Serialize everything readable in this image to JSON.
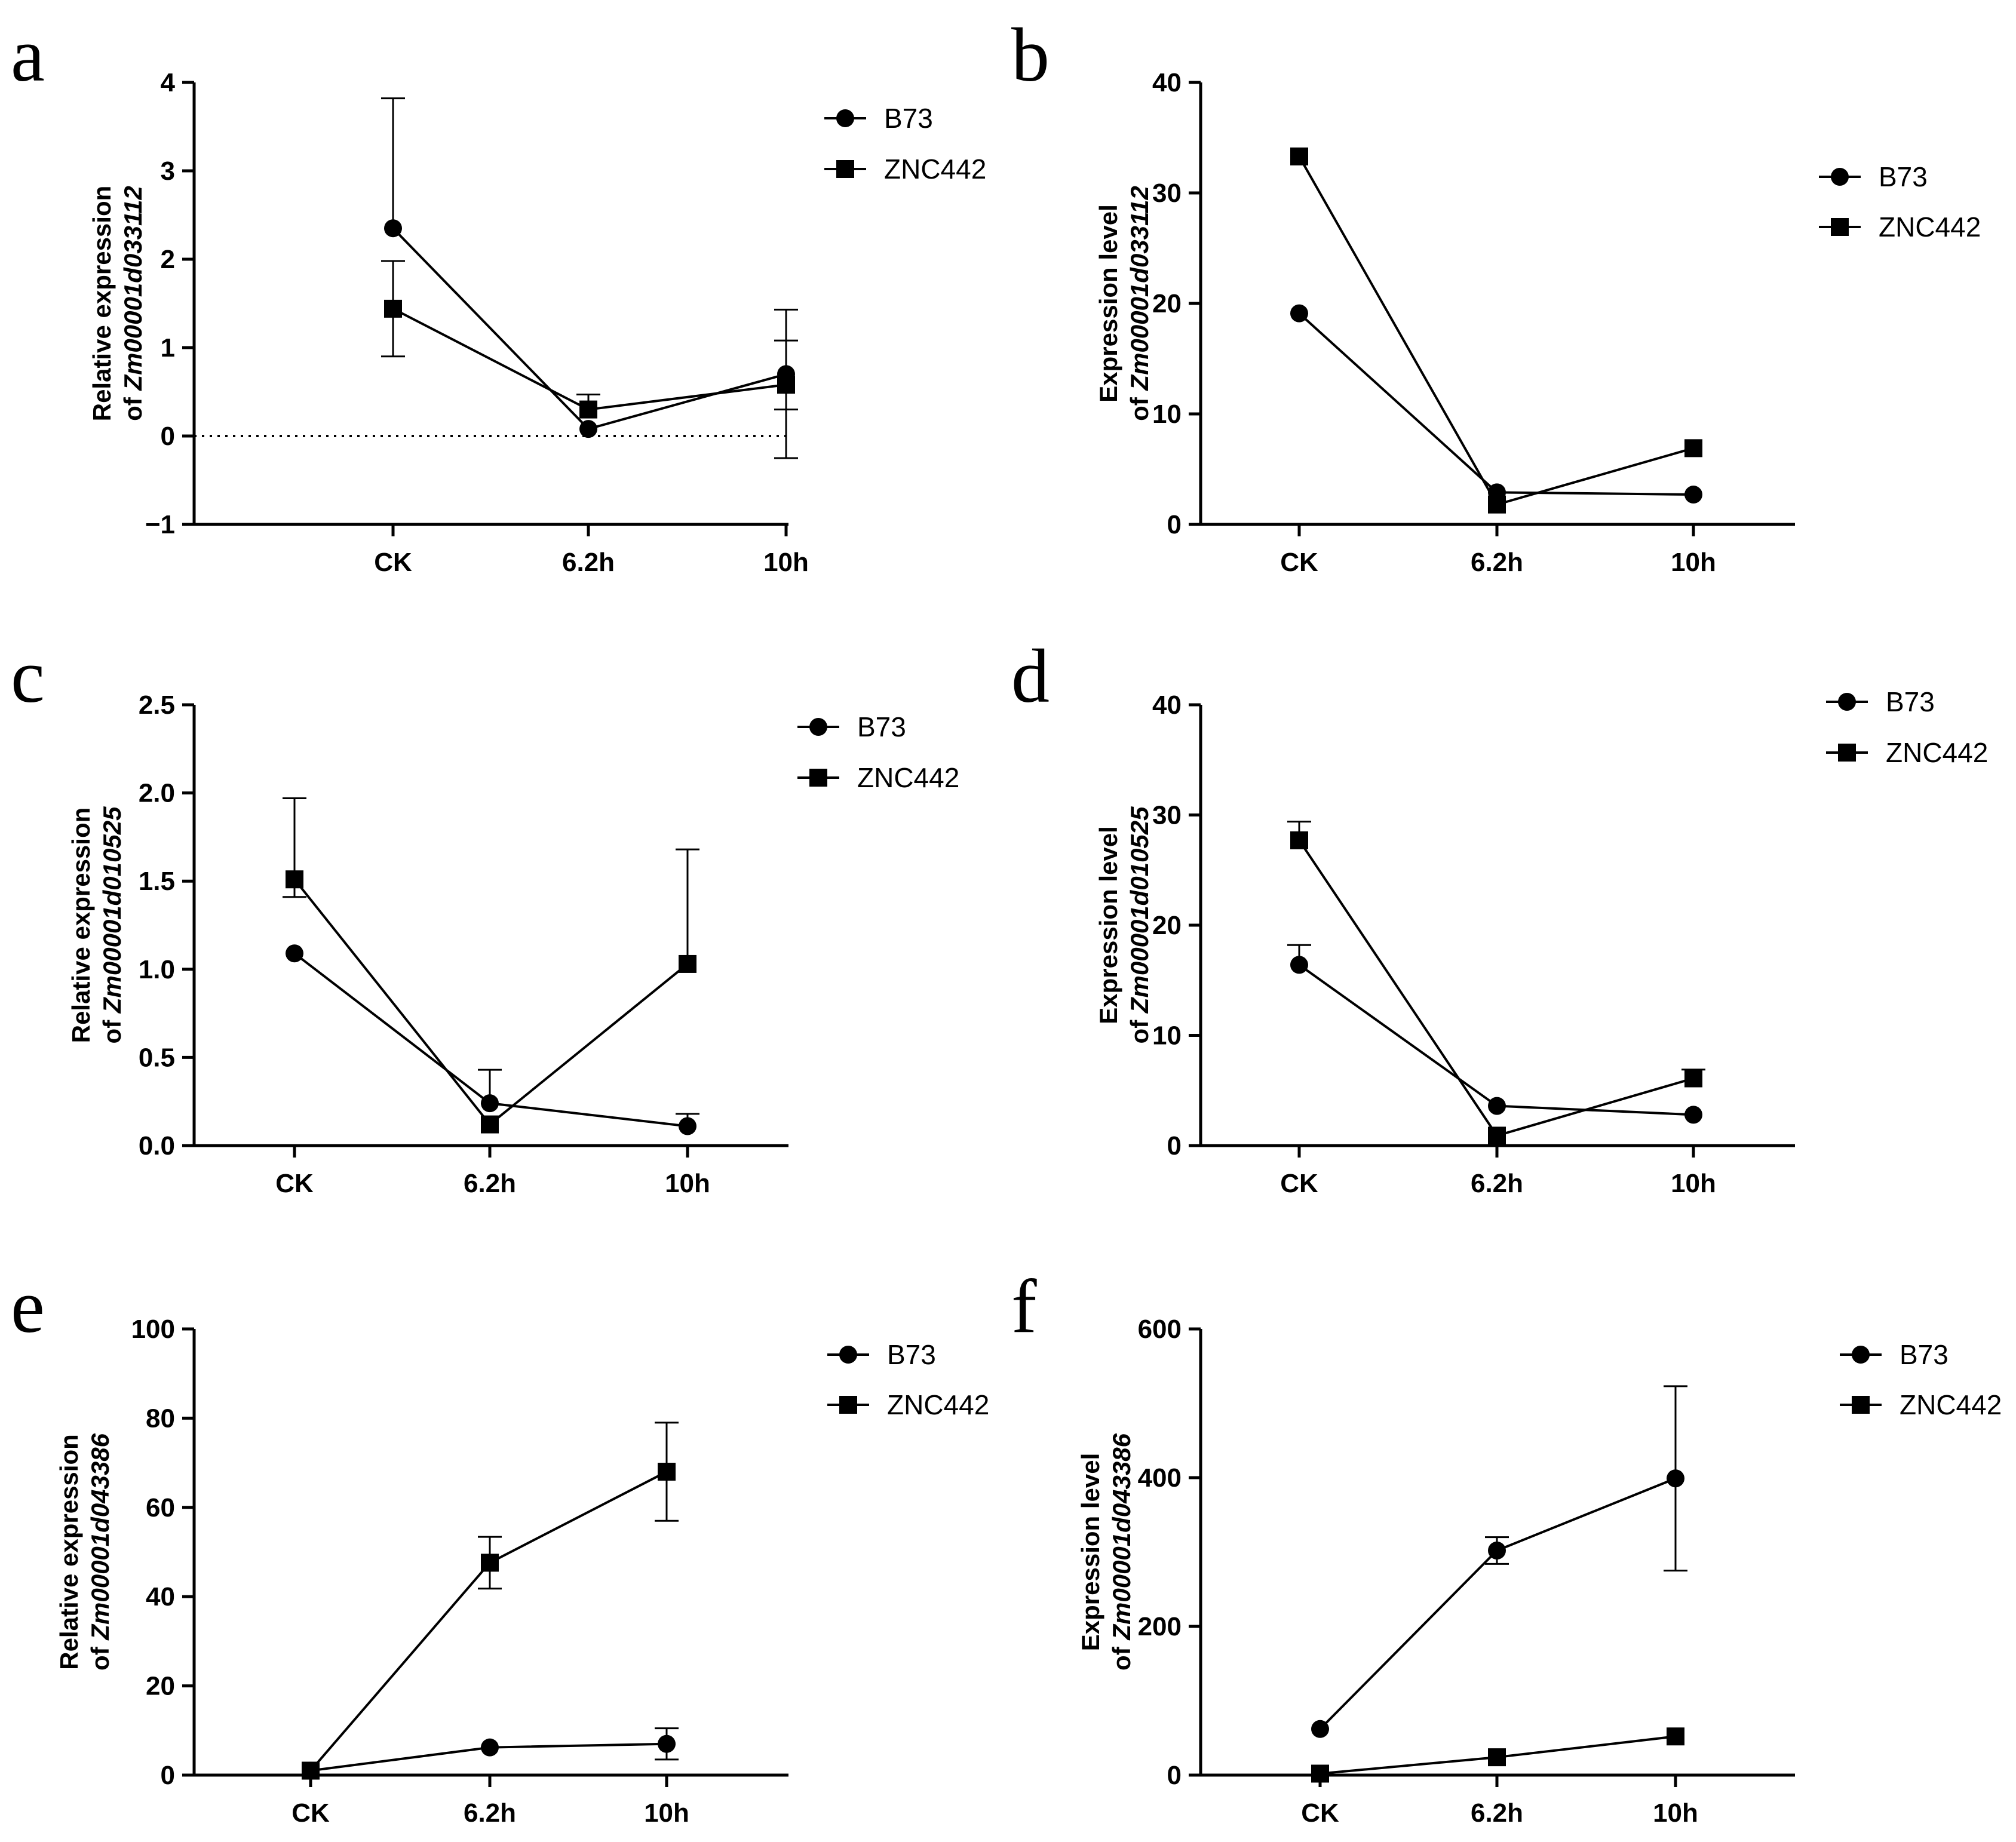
{
  "chart_data": [
    {
      "type": "line",
      "panel_label": "a",
      "categories": [
        "CK",
        "6.2h",
        "10h"
      ],
      "ylabel_prefix": "Relative expression",
      "ylabel_of": "of ",
      "gene": "Zm00001d033112",
      "ylim": [
        -1,
        4
      ],
      "ticks": [
        -1,
        0,
        1,
        2,
        3,
        4
      ],
      "tick_labels": [
        "−1",
        "0",
        "1",
        "2",
        "3",
        "4"
      ],
      "zero_line": true,
      "series": [
        {
          "name": "B73",
          "marker": "circle",
          "values": [
            2.35,
            0.08,
            0.7
          ],
          "err_low": [
            0,
            0,
            0.95
          ],
          "err_high": [
            1.47,
            0,
            0.73
          ]
        },
        {
          "name": "ZNC442",
          "marker": "square",
          "values": [
            1.44,
            0.3,
            0.58
          ],
          "err_low": [
            0.54,
            0,
            0.28
          ],
          "err_high": [
            0.54,
            0.17,
            0.5
          ]
        }
      ]
    },
    {
      "type": "line",
      "panel_label": "b",
      "categories": [
        "CK",
        "6.2h",
        "10h"
      ],
      "ylabel_prefix": "Expression level",
      "ylabel_of": "of ",
      "gene": "Zm00001d033112",
      "ylim": [
        0,
        40
      ],
      "ticks": [
        0,
        10,
        20,
        30,
        40
      ],
      "tick_labels": [
        "0",
        "10",
        "20",
        "30",
        "40"
      ],
      "zero_line": false,
      "series": [
        {
          "name": "B73",
          "marker": "circle",
          "values": [
            19.1,
            2.9,
            2.7
          ],
          "err_low": [
            0,
            0,
            0
          ],
          "err_high": [
            0,
            0,
            0
          ]
        },
        {
          "name": "ZNC442",
          "marker": "square",
          "values": [
            33.3,
            1.8,
            6.9
          ],
          "err_low": [
            0,
            0,
            0
          ],
          "err_high": [
            0,
            0,
            0
          ]
        }
      ]
    },
    {
      "type": "line",
      "panel_label": "c",
      "categories": [
        "CK",
        "6.2h",
        "10h"
      ],
      "ylabel_prefix": "Relative expression",
      "ylabel_of": "of ",
      "gene": "Zm00001d010525",
      "ylim": [
        0,
        2.5
      ],
      "ticks": [
        0,
        0.5,
        1,
        1.5,
        2,
        2.5
      ],
      "tick_labels": [
        "0.0",
        "0.5",
        "1.0",
        "1.5",
        "2.0",
        "2.5"
      ],
      "zero_line": false,
      "series": [
        {
          "name": "B73",
          "marker": "circle",
          "values": [
            1.09,
            0.24,
            0.11
          ],
          "err_low": [
            0,
            0,
            0
          ],
          "err_high": [
            0,
            0.19,
            0.07
          ]
        },
        {
          "name": "ZNC442",
          "marker": "square",
          "values": [
            1.51,
            0.12,
            1.03
          ],
          "err_low": [
            0.1,
            0,
            0
          ],
          "err_high": [
            0.46,
            0,
            0.65
          ]
        }
      ]
    },
    {
      "type": "line",
      "panel_label": "d",
      "categories": [
        "CK",
        "6.2h",
        "10h"
      ],
      "ylabel_prefix": "Expression level",
      "ylabel_of": "of ",
      "gene": "Zm00001d010525",
      "ylim": [
        0,
        40
      ],
      "ticks": [
        0,
        10,
        20,
        30,
        40
      ],
      "tick_labels": [
        "0",
        "10",
        "20",
        "30",
        "40"
      ],
      "zero_line": false,
      "series": [
        {
          "name": "B73",
          "marker": "circle",
          "values": [
            16.4,
            3.6,
            2.8
          ],
          "err_low": [
            0,
            0,
            0
          ],
          "err_high": [
            1.8,
            0,
            0
          ]
        },
        {
          "name": "ZNC442",
          "marker": "square",
          "values": [
            27.7,
            0.9,
            6.1
          ],
          "err_low": [
            0,
            0,
            0
          ],
          "err_high": [
            1.7,
            0,
            0.8
          ]
        }
      ]
    },
    {
      "type": "line",
      "panel_label": "e",
      "categories": [
        "CK",
        "6.2h",
        "10h"
      ],
      "ylabel_prefix": "Relative expression",
      "ylabel_of": "of ",
      "gene": "Zm00001d043386",
      "ylim": [
        0,
        100
      ],
      "ticks": [
        0,
        20,
        40,
        60,
        80,
        100
      ],
      "tick_labels": [
        "0",
        "20",
        "40",
        "60",
        "80",
        "100"
      ],
      "zero_line": false,
      "series": [
        {
          "name": "B73",
          "marker": "circle",
          "values": [
            1.0,
            6.2,
            7.0
          ],
          "err_low": [
            0,
            0,
            3.5
          ],
          "err_high": [
            0,
            0,
            3.5
          ]
        },
        {
          "name": "ZNC442",
          "marker": "square",
          "values": [
            1.0,
            47.6,
            68.0
          ],
          "err_low": [
            0,
            5.8,
            11.0
          ],
          "err_high": [
            0,
            5.8,
            11.0
          ]
        }
      ]
    },
    {
      "type": "line",
      "panel_label": "f",
      "categories": [
        "CK",
        "6.2h",
        "10h"
      ],
      "ylabel_prefix": "Expression level",
      "ylabel_of": "of ",
      "gene": "Zm00001d043386",
      "ylim": [
        0,
        600
      ],
      "ticks": [
        0,
        200,
        400,
        600
      ],
      "tick_labels": [
        "0",
        "200",
        "400",
        "600"
      ],
      "zero_line": false,
      "series": [
        {
          "name": "B73",
          "marker": "circle",
          "values": [
            62,
            302,
            399
          ],
          "err_low": [
            0,
            18,
            124
          ],
          "err_high": [
            0,
            18,
            124
          ]
        },
        {
          "name": "ZNC442",
          "marker": "square",
          "values": [
            2,
            24,
            52
          ],
          "err_low": [
            0,
            0,
            0
          ],
          "err_high": [
            0,
            0,
            0
          ]
        }
      ]
    }
  ]
}
